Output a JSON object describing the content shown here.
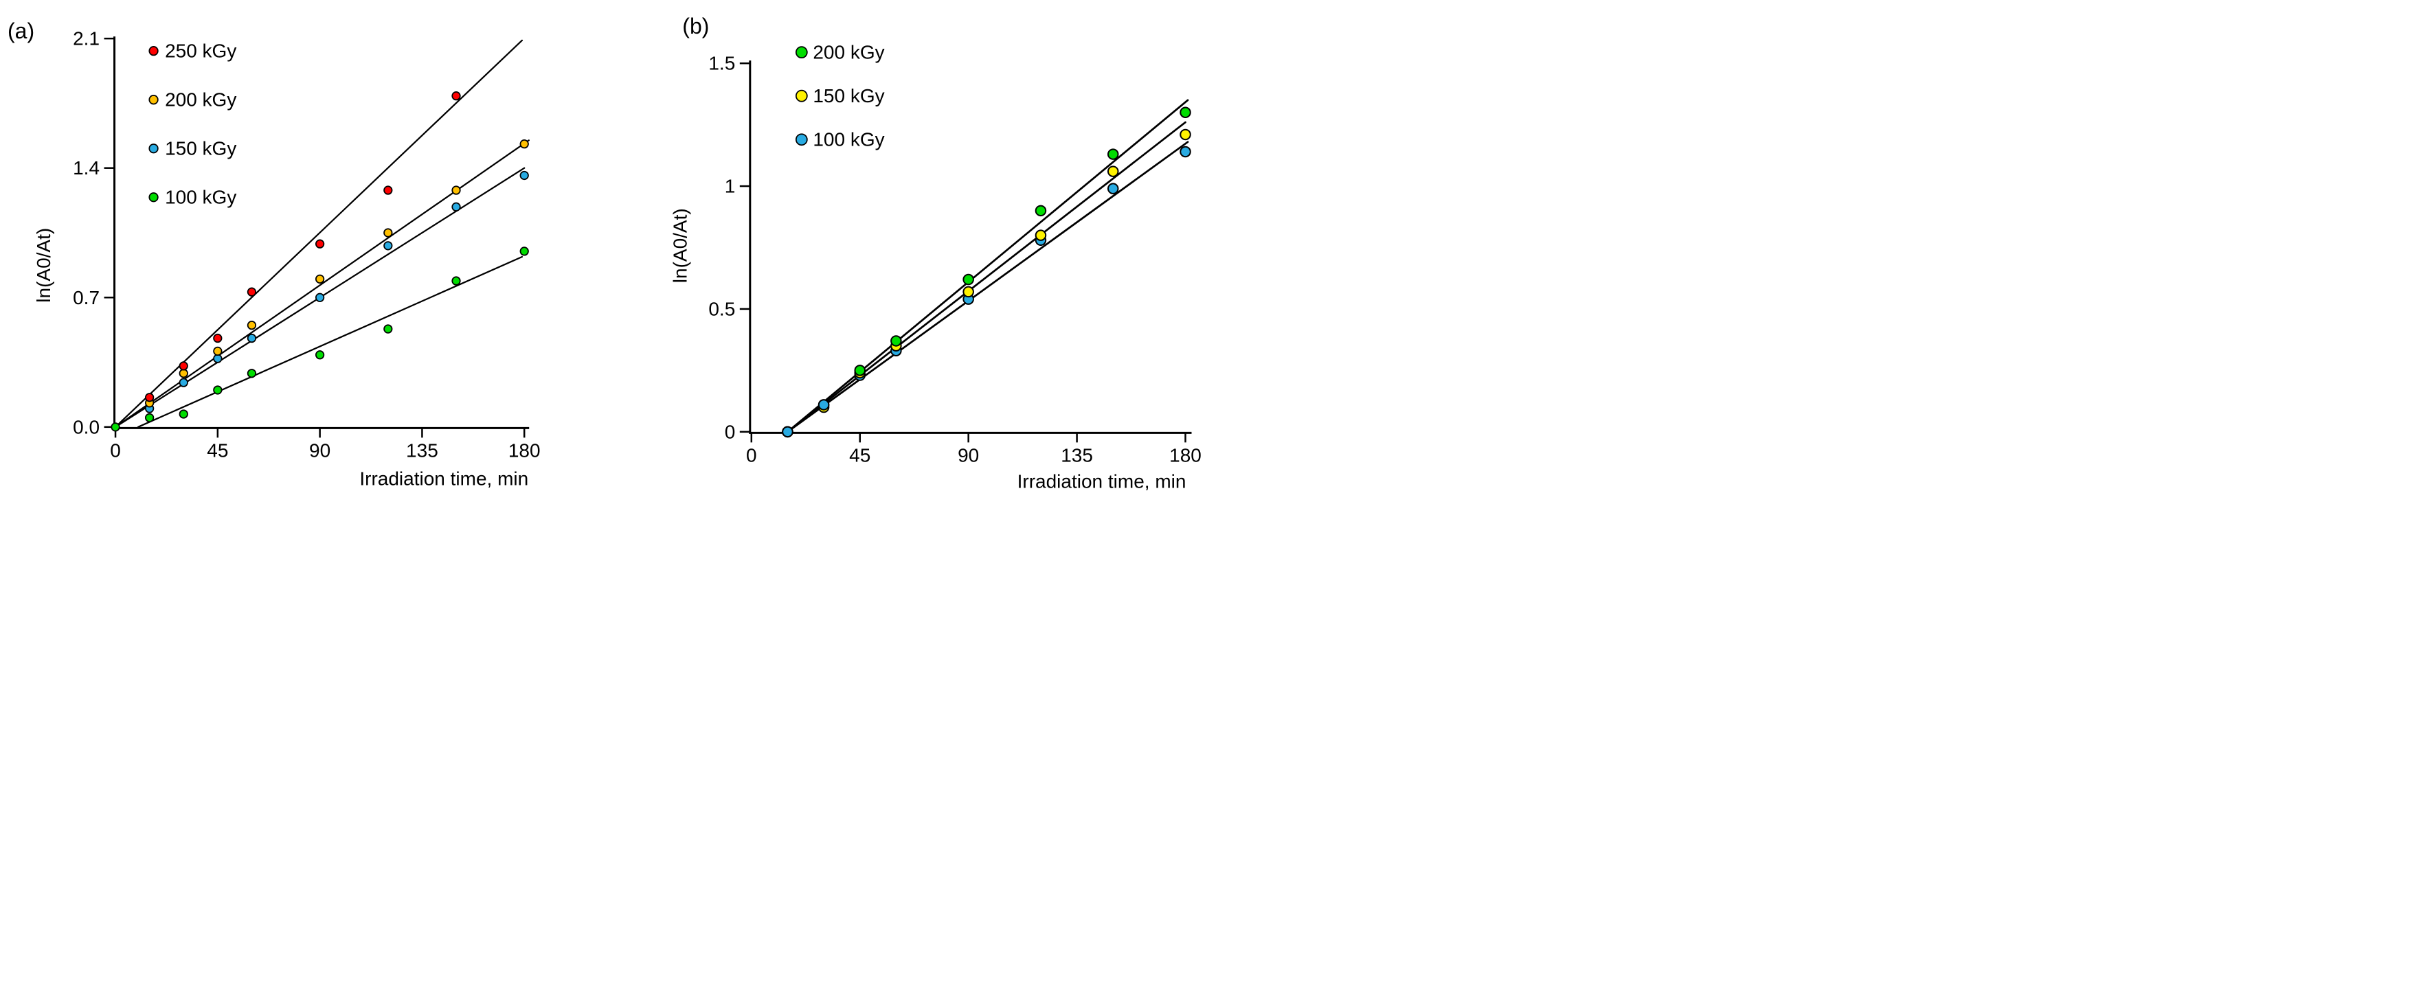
{
  "figure": {
    "background_color": "#ffffff",
    "axis_color": "#000000",
    "trendline_color": "#000000",
    "marker_outline_color": "#000000"
  },
  "chart_data": [
    {
      "type": "scatter",
      "panel_label": "(a)",
      "title": "",
      "xlabel": "Irradiation time, min",
      "ylabel": "ln(A0/At)",
      "xlim": [
        0,
        186
      ],
      "ylim": [
        0,
        2.1
      ],
      "xticks": [
        0,
        45,
        90,
        135,
        180
      ],
      "xtick_labels": [
        "0",
        "45",
        "90",
        "135",
        "180"
      ],
      "yticks": [
        0,
        0.7,
        1.4,
        2.1
      ],
      "ytick_labels": [
        "0.0",
        "0.7",
        "1.4",
        "2.1"
      ],
      "grid": false,
      "legend_position": "inside-top-left",
      "series": [
        {
          "name": "250 kGy",
          "color": "#FF0000",
          "marker": "circle",
          "x": [
            15,
            30,
            45,
            60,
            90,
            120,
            150
          ],
          "y": [
            0.16,
            0.33,
            0.48,
            0.73,
            0.99,
            1.28,
            1.79
          ],
          "trendline": {
            "x1": 0,
            "y1": 0,
            "x2": 179,
            "y2": 2.09
          }
        },
        {
          "name": "200 kGy",
          "color": "#FFC000",
          "marker": "circle",
          "x": [
            15,
            30,
            45,
            60,
            90,
            120,
            150,
            180
          ],
          "y": [
            0.13,
            0.29,
            0.41,
            0.55,
            0.8,
            1.05,
            1.28,
            1.53
          ],
          "trendline": {
            "x1": 0,
            "y1": 0,
            "x2": 182,
            "y2": 1.55
          }
        },
        {
          "name": "150 kGy",
          "color": "#29ABE2",
          "marker": "circle",
          "x": [
            15,
            30,
            45,
            60,
            90,
            120,
            150,
            180
          ],
          "y": [
            0.1,
            0.24,
            0.37,
            0.48,
            0.7,
            0.98,
            1.19,
            1.36
          ],
          "trendline": {
            "x1": 0,
            "y1": 0,
            "x2": 180,
            "y2": 1.4
          }
        },
        {
          "name": "100 kGy",
          "color": "#00DD00",
          "marker": "circle",
          "x": [
            0,
            15,
            30,
            45,
            60,
            90,
            120,
            150,
            180
          ],
          "y": [
            0.0,
            0.05,
            0.07,
            0.2,
            0.29,
            0.39,
            0.53,
            0.79,
            0.95
          ],
          "trendline": {
            "x1": 10,
            "y1": 0,
            "x2": 179,
            "y2": 0.92
          }
        }
      ]
    },
    {
      "type": "scatter",
      "panel_label": "(b)",
      "title": "",
      "xlabel": "Irradiation time, min",
      "ylabel": "ln(A0/At)",
      "xlim": [
        0,
        186
      ],
      "ylim": [
        0,
        1.5
      ],
      "xticks": [
        0,
        45,
        90,
        135,
        180
      ],
      "xtick_labels": [
        "0",
        "45",
        "90",
        "135",
        "180"
      ],
      "yticks": [
        0,
        0.5,
        1,
        1.5
      ],
      "ytick_labels": [
        "0",
        "0.5",
        "1",
        "1.5"
      ],
      "grid": false,
      "legend_position": "inside-top-left",
      "series": [
        {
          "name": "200 kGy",
          "color": "#00DD00",
          "marker": "circle",
          "x": [
            15,
            30,
            45,
            60,
            90,
            120,
            150,
            180
          ],
          "y": [
            0.0,
            0.11,
            0.25,
            0.37,
            0.62,
            0.9,
            1.13,
            1.3
          ],
          "trendline": {
            "x1": 15,
            "y1": 0,
            "x2": 181,
            "y2": 1.35
          }
        },
        {
          "name": "150 kGy",
          "color": "#FFF200",
          "marker": "circle",
          "x": [
            15,
            30,
            45,
            60,
            90,
            120,
            150,
            180
          ],
          "y": [
            0.0,
            0.1,
            0.24,
            0.35,
            0.57,
            0.8,
            1.06,
            1.21
          ],
          "trendline": {
            "x1": 15,
            "y1": 0,
            "x2": 180,
            "y2": 1.26
          }
        },
        {
          "name": "100 kGy",
          "color": "#29ABE2",
          "marker": "circle",
          "x": [
            15,
            30,
            45,
            60,
            90,
            120,
            150,
            180
          ],
          "y": [
            0.0,
            0.11,
            0.23,
            0.33,
            0.54,
            0.78,
            0.99,
            1.14
          ],
          "trendline": {
            "x1": 15,
            "y1": 0,
            "x2": 181,
            "y2": 1.18
          }
        }
      ]
    }
  ]
}
